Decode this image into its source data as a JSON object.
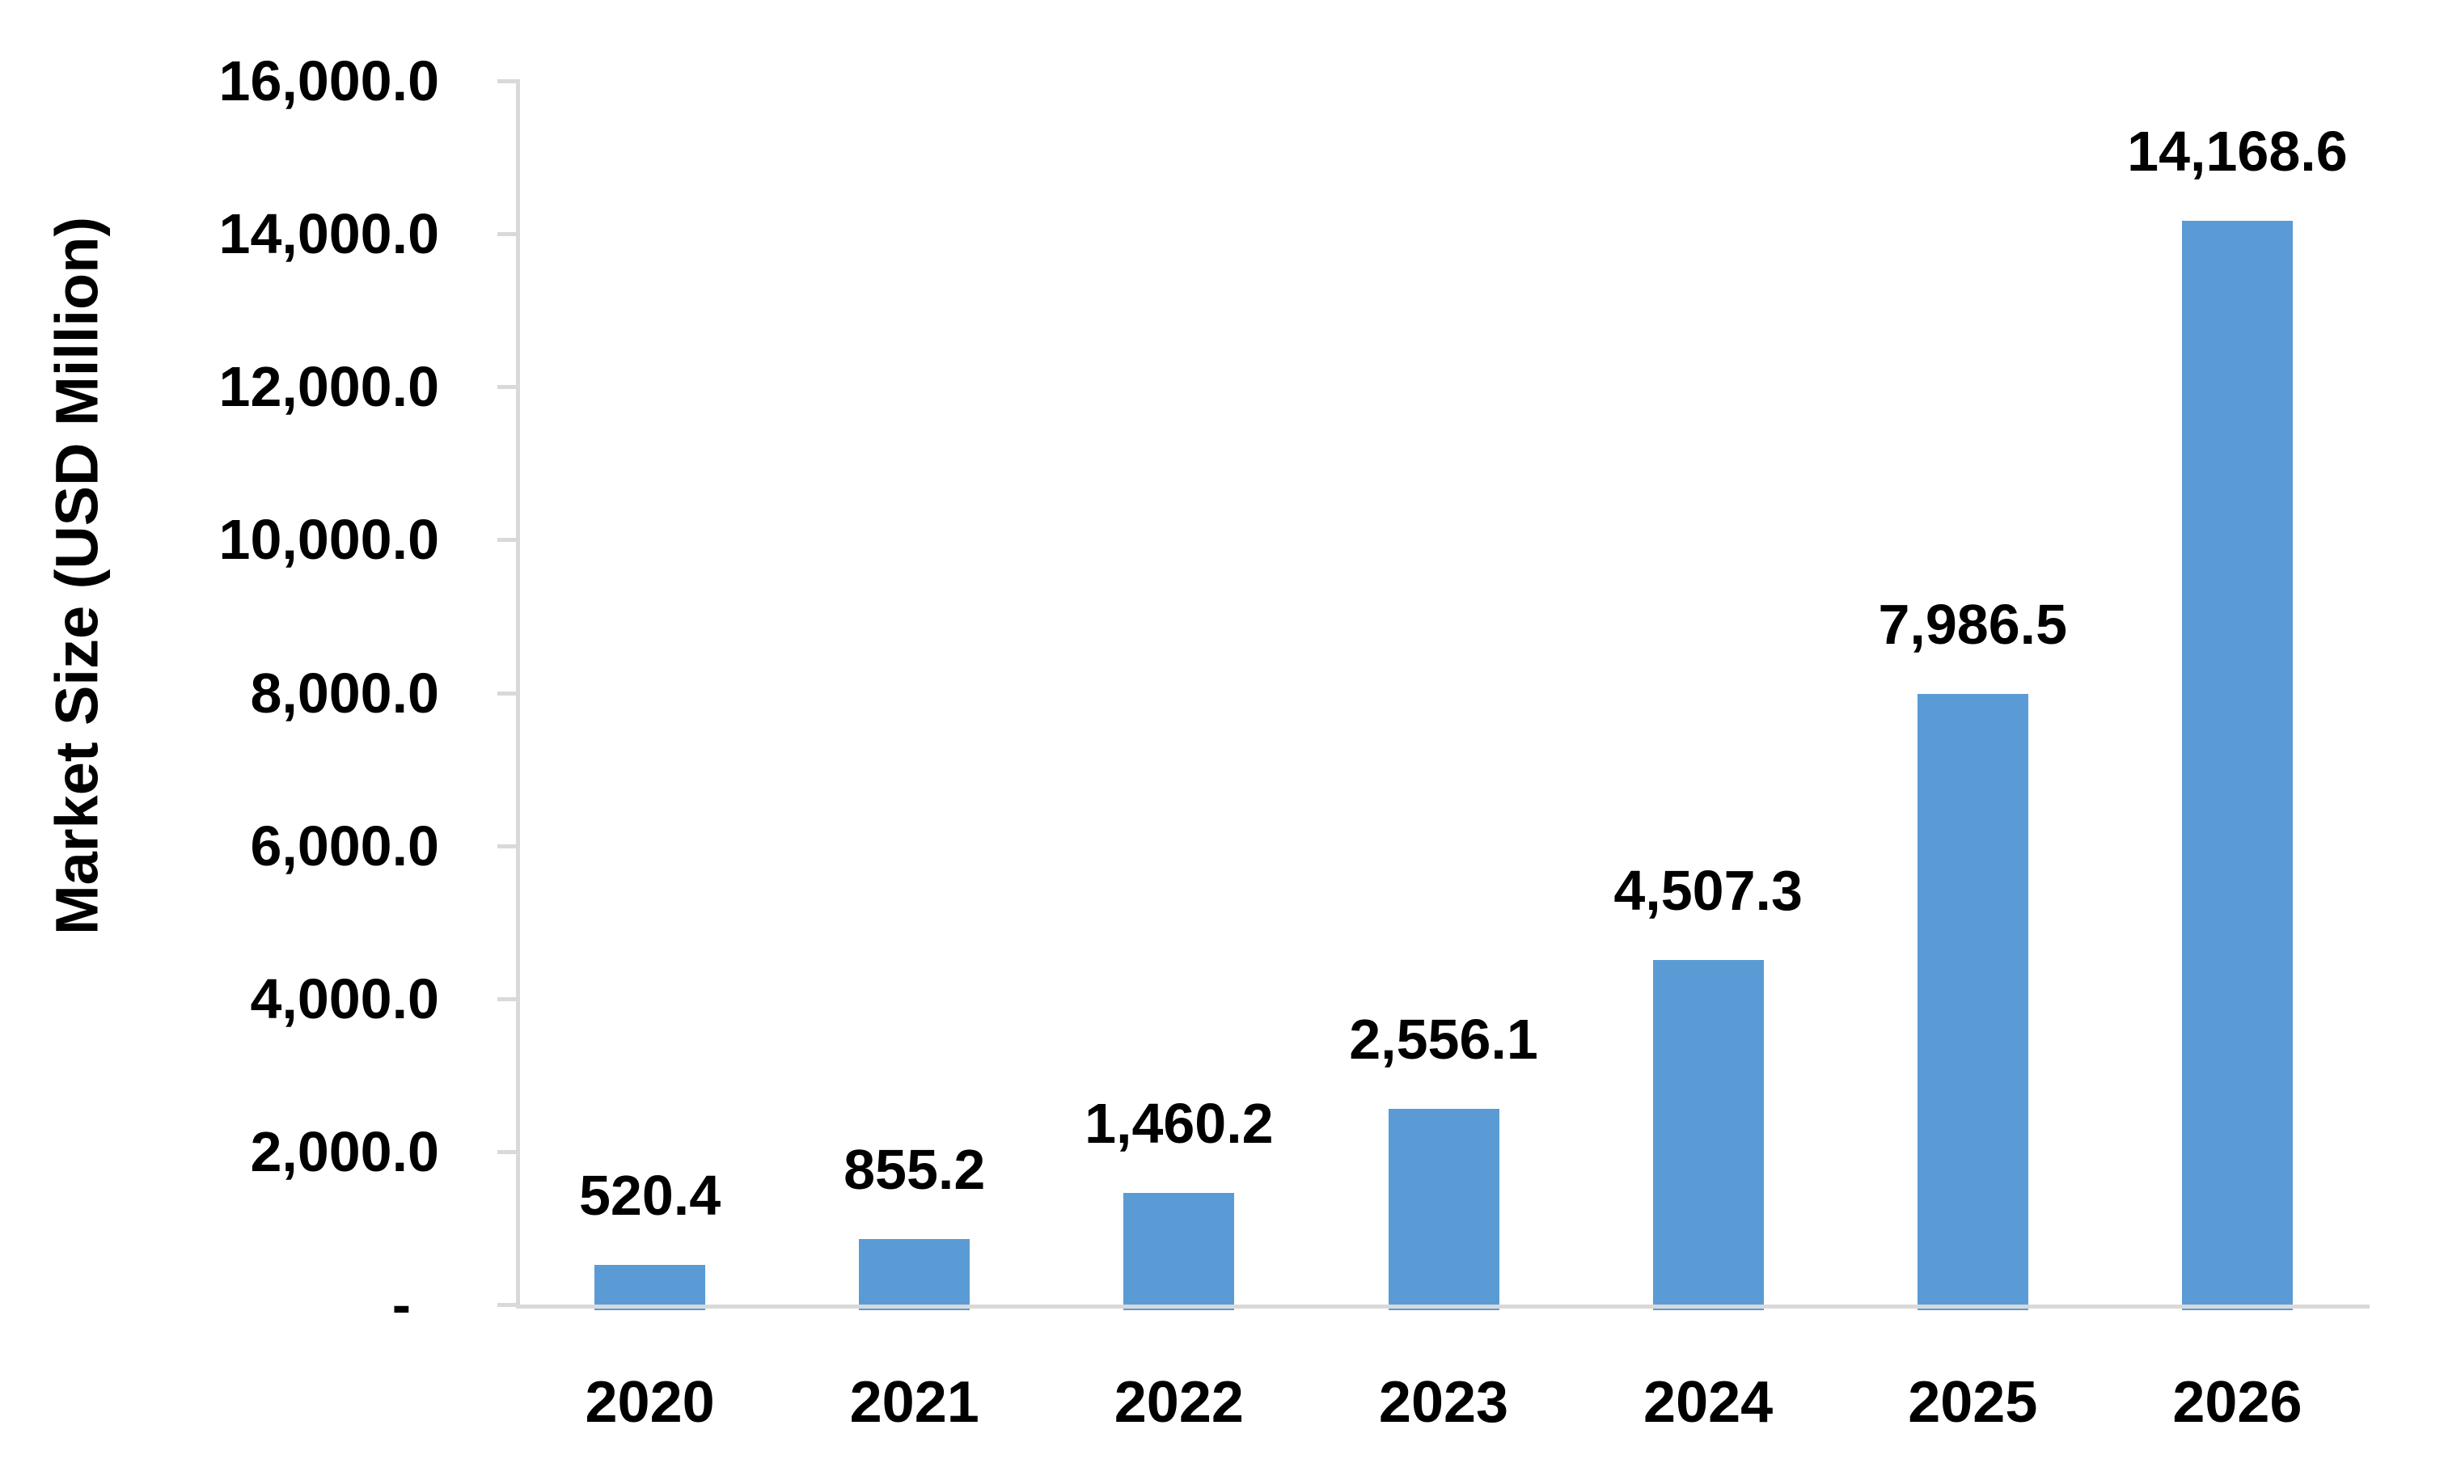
{
  "chart_data": {
    "type": "bar",
    "title": "",
    "categories": [
      "2020",
      "2021",
      "2022",
      "2023",
      "2024",
      "2025",
      "2026"
    ],
    "values": [
      520.4,
      855.2,
      1460.2,
      2556.1,
      4507.3,
      7986.5,
      14168.6
    ],
    "data_labels": [
      "520.4",
      "855.2",
      "1,460.2",
      "2,556.1",
      "4,507.3",
      "7,986.5",
      "14,168.6"
    ],
    "xlabel": "",
    "ylabel": "Market Size (USD Million)",
    "ylim": [
      0,
      16000
    ],
    "y_tick_interval": 2000,
    "y_tick_labels": [
      "16,000.0",
      "14,000.0",
      "12,000.0",
      "10,000.0",
      "8,000.0",
      "6,000.0",
      "4,000.0",
      "2,000.0",
      "-"
    ],
    "grid": false,
    "legend": false,
    "series_name": "Market Size",
    "bar_color": "#5B9BD5",
    "axis_color": "#D9D9D9",
    "text_color": "#000000"
  }
}
